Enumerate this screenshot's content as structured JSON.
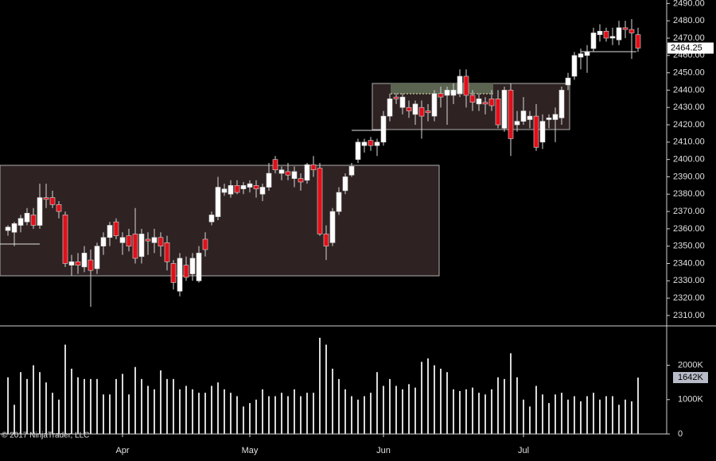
{
  "chart_data": [
    {
      "type": "candlestick",
      "up_color": "#ffffff",
      "down_color": "#e0101a",
      "grid": false,
      "ylim": [
        2304,
        2492
      ],
      "yticks": [
        {
          "value": 2310,
          "label": "2310.00"
        },
        {
          "value": 2320,
          "label": "2320.00"
        },
        {
          "value": 2330,
          "label": "2330.00"
        },
        {
          "value": 2340,
          "label": "2340.00"
        },
        {
          "value": 2350,
          "label": "2350.00"
        },
        {
          "value": 2360,
          "label": "2360.00"
        },
        {
          "value": 2370,
          "label": "2370.00"
        },
        {
          "value": 2380,
          "label": "2380.00"
        },
        {
          "value": 2390,
          "label": "2390.00"
        },
        {
          "value": 2400,
          "label": "2400.00"
        },
        {
          "value": 2410,
          "label": "2410.00"
        },
        {
          "value": 2420,
          "label": "2420.00"
        },
        {
          "value": 2430,
          "label": "2430.00"
        },
        {
          "value": 2440,
          "label": "2440.00"
        },
        {
          "value": 2450,
          "label": "2450.00"
        },
        {
          "value": 2460,
          "label": "2460.00"
        },
        {
          "value": 2470,
          "label": "2470.00"
        },
        {
          "value": 2480,
          "label": "2480.00"
        },
        {
          "value": 2490,
          "label": "2490.00"
        }
      ],
      "categories": [
        null,
        null,
        null,
        null,
        null,
        null,
        null,
        null,
        null,
        null,
        null,
        null,
        null,
        null,
        null,
        null,
        null,
        null,
        "Apr",
        null,
        null,
        null,
        null,
        null,
        null,
        null,
        null,
        null,
        null,
        null,
        null,
        null,
        null,
        null,
        null,
        null,
        null,
        null,
        "May",
        null,
        null,
        null,
        null,
        null,
        null,
        null,
        null,
        null,
        null,
        null,
        null,
        null,
        null,
        null,
        null,
        null,
        null,
        null,
        null,
        "Jun",
        null,
        null,
        null,
        null,
        null,
        null,
        null,
        null,
        null,
        null,
        null,
        null,
        null,
        null,
        null,
        null,
        null,
        null,
        null,
        null,
        null,
        "Jul",
        null,
        null,
        null,
        null,
        null,
        null,
        null,
        null,
        null,
        null,
        null,
        null,
        null,
        null,
        null,
        null,
        null,
        null
      ],
      "open": [
        2359,
        2358,
        2362,
        2364,
        2368,
        2362,
        2378,
        2378,
        2374,
        2368,
        2339,
        2341,
        2338,
        2342,
        2337,
        2350,
        2355,
        2364,
        2352,
        2356,
        2357,
        2344,
        2354,
        2352,
        2355,
        2352,
        2340,
        2324,
        2339,
        2334,
        2330,
        2354,
        2364,
        2367,
        2381,
        2380,
        2385,
        2383,
        2384,
        2385,
        2380,
        2384,
        2400,
        2392,
        2393,
        2389,
        2389,
        2388,
        2397,
        2395,
        2357,
        2352,
        2370,
        2382,
        2391,
        2400,
        2408,
        2411,
        2408,
        2410,
        2425,
        2436,
        2430,
        2430,
        2426,
        2430,
        2428,
        2425,
        2438,
        2437,
        2437,
        2438,
        2448,
        2437,
        2432,
        2433,
        2435,
        2435,
        2418,
        2440,
        2420,
        2422,
        2423,
        2425,
        2410,
        2423,
        2423,
        2424,
        2443,
        2448,
        2459,
        2460,
        2464,
        2472,
        2474,
        2470,
        2469,
        2476,
        2475,
        2472
      ],
      "high": [
        2362,
        2364,
        2368,
        2372,
        2372,
        2386,
        2386,
        2382,
        2376,
        2370,
        2345,
        2346,
        2350,
        2348,
        2352,
        2358,
        2364,
        2366,
        2358,
        2360,
        2372,
        2360,
        2358,
        2360,
        2358,
        2356,
        2342,
        2346,
        2344,
        2346,
        2350,
        2358,
        2370,
        2390,
        2386,
        2388,
        2388,
        2387,
        2388,
        2388,
        2386,
        2398,
        2402,
        2396,
        2398,
        2396,
        2392,
        2398,
        2402,
        2398,
        2362,
        2372,
        2384,
        2392,
        2398,
        2412,
        2412,
        2413,
        2412,
        2428,
        2438,
        2438,
        2438,
        2434,
        2434,
        2434,
        2432,
        2440,
        2442,
        2442,
        2444,
        2452,
        2452,
        2440,
        2438,
        2436,
        2440,
        2440,
        2442,
        2444,
        2428,
        2436,
        2428,
        2432,
        2426,
        2426,
        2430,
        2442,
        2450,
        2462,
        2464,
        2466,
        2476,
        2478,
        2476,
        2476,
        2480,
        2480,
        2481,
        2476
      ],
      "low": [
        2356,
        2350,
        2358,
        2362,
        2360,
        2360,
        2372,
        2372,
        2366,
        2338,
        2333,
        2334,
        2335,
        2315,
        2334,
        2345,
        2350,
        2354,
        2345,
        2347,
        2340,
        2340,
        2345,
        2346,
        2344,
        2336,
        2325,
        2321,
        2330,
        2330,
        2329,
        2344,
        2362,
        2365,
        2379,
        2378,
        2380,
        2380,
        2381,
        2378,
        2376,
        2382,
        2392,
        2388,
        2388,
        2384,
        2382,
        2386,
        2390,
        2356,
        2342,
        2350,
        2368,
        2380,
        2390,
        2398,
        2404,
        2405,
        2402,
        2408,
        2422,
        2432,
        2426,
        2424,
        2420,
        2412,
        2422,
        2422,
        2430,
        2420,
        2432,
        2436,
        2430,
        2428,
        2428,
        2426,
        2428,
        2418,
        2416,
        2402,
        2416,
        2420,
        2418,
        2405,
        2406,
        2418,
        2410,
        2420,
        2440,
        2446,
        2452,
        2450,
        2462,
        2468,
        2468,
        2466,
        2466,
        2470,
        2458,
        2462
      ],
      "close": [
        2361,
        2363,
        2366,
        2369,
        2362,
        2378,
        2377,
        2374,
        2370,
        2340,
        2341,
        2339,
        2346,
        2336,
        2350,
        2355,
        2362,
        2356,
        2355,
        2350,
        2343,
        2357,
        2353,
        2355,
        2350,
        2341,
        2329,
        2343,
        2332,
        2343,
        2346,
        2348,
        2368,
        2384,
        2383,
        2385,
        2381,
        2385,
        2386,
        2383,
        2384,
        2392,
        2394,
        2394,
        2391,
        2393,
        2387,
        2397,
        2394,
        2357,
        2350,
        2370,
        2381,
        2390,
        2396,
        2410,
        2410,
        2408,
        2410,
        2425,
        2435,
        2435,
        2436,
        2428,
        2432,
        2425,
        2427,
        2438,
        2436,
        2440,
        2440,
        2448,
        2437,
        2433,
        2435,
        2432,
        2431,
        2420,
        2440,
        2412,
        2422,
        2428,
        2425,
        2407,
        2422,
        2424,
        2426,
        2440,
        2447,
        2460,
        2461,
        2462,
        2473,
        2474,
        2470,
        2471,
        2476,
        2475,
        2473,
        2464.25
      ]
    },
    {
      "type": "bar",
      "color": "#d8d8d8",
      "ylim": [
        0,
        3100
      ],
      "yticks": [
        0,
        {
          "value": 1000,
          "label": "1000K"
        },
        {
          "value": 2000,
          "label": "2000K"
        }
      ],
      "current_value_label": "1642K",
      "values": [
        1650,
        850,
        1800,
        1600,
        2000,
        1800,
        1500,
        1200,
        1000,
        2600,
        1900,
        1650,
        1600,
        1600,
        1600,
        1150,
        1150,
        1600,
        1750,
        1150,
        1950,
        1600,
        1400,
        1300,
        1850,
        1600,
        1600,
        1300,
        1400,
        1300,
        1200,
        1200,
        1400,
        1500,
        1300,
        1200,
        1100,
        800,
        900,
        1000,
        1300,
        1100,
        1100,
        1200,
        1100,
        1300,
        1100,
        1200,
        1200,
        2800,
        2600,
        1900,
        1600,
        1300,
        1100,
        1000,
        1100,
        1200,
        1800,
        1400,
        1600,
        1400,
        1300,
        1450,
        1350,
        2100,
        2200,
        2000,
        1900,
        1800,
        1300,
        1250,
        1300,
        1350,
        1200,
        1150,
        1300,
        1650,
        1600,
        2350,
        1650,
        1000,
        800,
        1400,
        1150,
        900,
        1150,
        1200,
        1000,
        1100,
        950,
        1100,
        1200,
        1000,
        1100,
        1100,
        850,
        1000,
        950,
        1642
      ]
    }
  ],
  "copyright": "© 2017 NinjaTrader, LLC"
}
